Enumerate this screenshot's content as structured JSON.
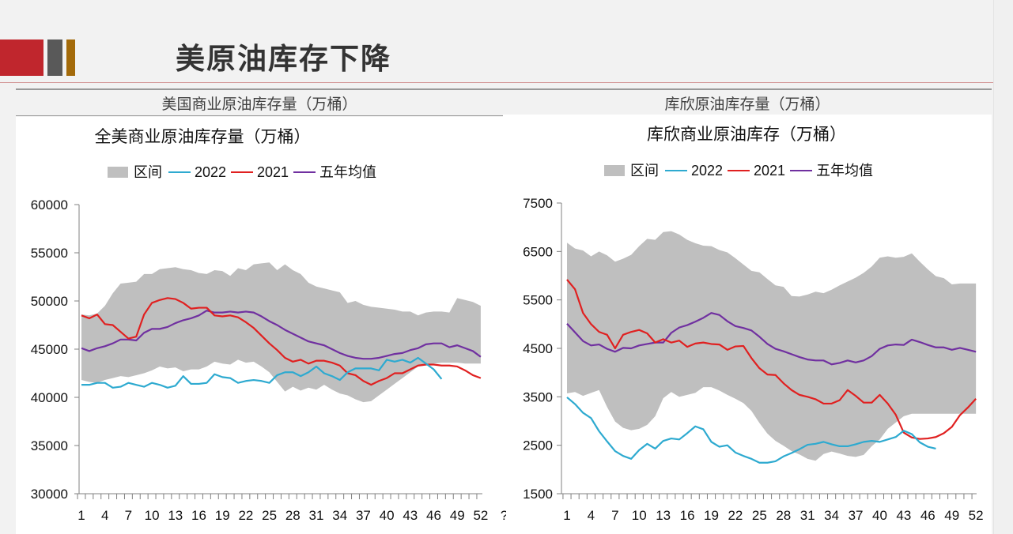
{
  "page": {
    "title": "美原油库存下降",
    "left_section_title": "美国商业原油库存量（万桶）",
    "right_section_title": "库欣原油库存量（万桶）"
  },
  "colors": {
    "band": "#bfbfbf",
    "y2022": "#2eaad0",
    "y2021": "#e02020",
    "avg5": "#7030a0",
    "brand_red": "#c0262d",
    "brand_gray": "#595959",
    "brand_gold": "#a36a0a"
  },
  "chart_data": [
    {
      "type": "area",
      "title": "全美商业原油库存量（万桶）",
      "xlabel": "",
      "ylabel": "",
      "ylim": [
        30000,
        60000
      ],
      "yticks": [
        "60000",
        "55000",
        "50000",
        "45000",
        "40000",
        "35000",
        "30000"
      ],
      "yticks_values": [
        60000,
        55000,
        50000,
        45000,
        40000,
        35000,
        30000
      ],
      "xticks": [
        "1",
        "4",
        "7",
        "10",
        "13",
        "16",
        "19",
        "22",
        "25",
        "28",
        "31",
        "34",
        "37",
        "40",
        "43",
        "46",
        "49",
        "52",
        "?"
      ],
      "x_range": [
        1,
        53
      ],
      "legend": [
        "区间",
        "2022",
        "2021",
        "五年均值"
      ],
      "legend_position": "top",
      "band_upper": [
        48600,
        48500,
        48700,
        49500,
        50800,
        51800,
        51900,
        52000,
        52800,
        52800,
        53300,
        53400,
        53500,
        53300,
        53200,
        52900,
        52800,
        53200,
        53100,
        52600,
        53400,
        53200,
        53800,
        53900,
        54000,
        53200,
        53800,
        53200,
        52800,
        51900,
        51500,
        51300,
        51100,
        50900,
        49800,
        50000,
        49600,
        49400,
        49300,
        49200,
        49100,
        48900,
        48900,
        48500,
        48800,
        48900,
        48900,
        48800,
        50300,
        50100,
        49900,
        49500
      ],
      "band_lower": [
        41800,
        41600,
        41500,
        41800,
        42000,
        42200,
        42100,
        42300,
        42500,
        42800,
        43200,
        43000,
        43100,
        42700,
        42900,
        42900,
        43200,
        43700,
        43500,
        43400,
        43900,
        43600,
        43700,
        43200,
        42600,
        41600,
        40600,
        41100,
        40700,
        41000,
        40800,
        41300,
        40800,
        40400,
        40200,
        39800,
        39500,
        39600,
        40200,
        40800,
        41400,
        42000,
        42600,
        43200,
        43300,
        43500,
        43600,
        43600,
        43600,
        43500,
        43500,
        43500
      ],
      "series": [
        {
          "name": "2022",
          "values": [
            41300,
            41300,
            41500,
            41500,
            41000,
            41100,
            41500,
            41300,
            41100,
            41500,
            41300,
            41000,
            41200,
            42200,
            41400,
            41400,
            41500,
            42400,
            42100,
            42000,
            41500,
            41700,
            41800,
            41700,
            41500,
            42300,
            42600,
            42600,
            42200,
            42600,
            43200,
            42500,
            42200,
            41800,
            42600,
            43000,
            43000,
            43000,
            42800,
            43900,
            43700,
            43900,
            43600,
            44100,
            43500,
            42900,
            41900
          ]
        },
        {
          "name": "2021",
          "values": [
            48500,
            48200,
            48600,
            47600,
            47500,
            46800,
            46100,
            46300,
            48600,
            49800,
            50100,
            50300,
            50200,
            49800,
            49200,
            49300,
            49300,
            48500,
            48400,
            48500,
            48300,
            47800,
            47200,
            46400,
            45600,
            44900,
            44100,
            43700,
            43900,
            43500,
            43800,
            43800,
            43600,
            43300,
            42500,
            42300,
            41700,
            41300,
            41700,
            42000,
            42500,
            42500,
            42900,
            43300,
            43400,
            43400,
            43300,
            43300,
            43200,
            42800,
            42300,
            42000
          ]
        },
        {
          "name": "五年均值",
          "values": [
            45100,
            44800,
            45100,
            45300,
            45600,
            46000,
            46000,
            45900,
            46700,
            47100,
            47100,
            47300,
            47700,
            48000,
            48200,
            48500,
            49000,
            48800,
            48800,
            48900,
            48800,
            48900,
            48800,
            48400,
            47900,
            47500,
            47000,
            46600,
            46200,
            45800,
            45600,
            45400,
            45000,
            44600,
            44300,
            44100,
            44000,
            44000,
            44100,
            44300,
            44500,
            44600,
            44900,
            45100,
            45500,
            45600,
            45600,
            45200,
            45400,
            45100,
            44800,
            44200
          ]
        }
      ]
    },
    {
      "type": "area",
      "title": "库欣商业原油库存（万桶）",
      "xlabel": "",
      "ylabel": "",
      "ylim": [
        1500,
        7500
      ],
      "yticks": [
        "7500",
        "6500",
        "5500",
        "4500",
        "3500",
        "2500",
        "1500"
      ],
      "yticks_values": [
        7500,
        6500,
        5500,
        4500,
        3500,
        2500,
        1500
      ],
      "xticks": [
        "1",
        "4",
        "7",
        "10",
        "13",
        "16",
        "19",
        "22",
        "25",
        "28",
        "31",
        "34",
        "37",
        "40",
        "43",
        "46",
        "49",
        "52"
      ],
      "x_range": [
        1,
        52
      ],
      "legend": [
        "区间",
        "2022",
        "2021",
        "五年均值"
      ],
      "legend_position": "top",
      "band_upper": [
        6680,
        6560,
        6520,
        6400,
        6500,
        6420,
        6290,
        6350,
        6430,
        6610,
        6760,
        6740,
        6900,
        6920,
        6850,
        6740,
        6670,
        6620,
        6610,
        6530,
        6480,
        6360,
        6230,
        6100,
        6070,
        5930,
        5800,
        5770,
        5580,
        5570,
        5610,
        5670,
        5640,
        5710,
        5800,
        5880,
        5960,
        6060,
        6190,
        6370,
        6400,
        6370,
        6390,
        6460,
        6290,
        6130,
        5990,
        5950,
        5820,
        5840,
        5840,
        5840
      ],
      "band_lower": [
        3570,
        3600,
        3520,
        3580,
        3640,
        3290,
        2990,
        2860,
        2810,
        2840,
        2920,
        3100,
        3470,
        3600,
        3500,
        3540,
        3580,
        3700,
        3700,
        3630,
        3540,
        3460,
        3370,
        3210,
        2960,
        2740,
        2590,
        2490,
        2380,
        2310,
        2220,
        2180,
        2320,
        2370,
        2330,
        2280,
        2260,
        2300,
        2480,
        2620,
        2840,
        2970,
        3100,
        3150,
        3150,
        3150,
        3150,
        3150,
        3150,
        3150,
        3150,
        3150
      ],
      "series": [
        {
          "name": "2022",
          "values": [
            3490,
            3350,
            3170,
            3060,
            2790,
            2580,
            2380,
            2280,
            2220,
            2400,
            2530,
            2430,
            2590,
            2640,
            2620,
            2750,
            2890,
            2830,
            2570,
            2470,
            2500,
            2350,
            2280,
            2220,
            2140,
            2140,
            2170,
            2270,
            2340,
            2420,
            2510,
            2530,
            2570,
            2520,
            2480,
            2480,
            2520,
            2570,
            2590,
            2570,
            2620,
            2670,
            2800,
            2730,
            2560,
            2470,
            2430
          ]
        },
        {
          "name": "2021",
          "values": [
            5920,
            5720,
            5230,
            5000,
            4840,
            4780,
            4500,
            4780,
            4840,
            4880,
            4810,
            4620,
            4690,
            4620,
            4660,
            4530,
            4600,
            4620,
            4590,
            4580,
            4470,
            4540,
            4550,
            4300,
            4090,
            3960,
            3950,
            3780,
            3640,
            3540,
            3500,
            3450,
            3360,
            3360,
            3430,
            3640,
            3520,
            3380,
            3380,
            3540,
            3360,
            3130,
            2760,
            2660,
            2630,
            2640,
            2670,
            2750,
            2880,
            3120,
            3280,
            3460
          ]
        },
        {
          "name": "五年均值",
          "values": [
            5010,
            4830,
            4650,
            4560,
            4580,
            4490,
            4430,
            4510,
            4500,
            4560,
            4590,
            4620,
            4620,
            4820,
            4930,
            4980,
            5050,
            5130,
            5230,
            5190,
            5060,
            4960,
            4920,
            4870,
            4740,
            4590,
            4490,
            4440,
            4380,
            4320,
            4270,
            4250,
            4250,
            4170,
            4200,
            4250,
            4210,
            4250,
            4340,
            4490,
            4560,
            4580,
            4570,
            4680,
            4630,
            4570,
            4520,
            4520,
            4470,
            4510,
            4470,
            4430
          ]
        }
      ]
    }
  ]
}
